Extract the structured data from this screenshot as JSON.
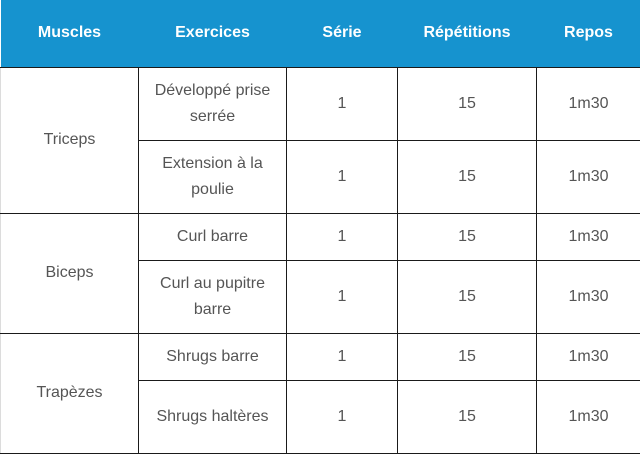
{
  "table": {
    "headers": {
      "muscle": "Muscles",
      "exercise": "Exercices",
      "series": "Série",
      "reps": "Répétitions",
      "rest": "Repos"
    },
    "groups": [
      {
        "muscle": "Triceps",
        "rows": [
          {
            "exercise": "Développé prise serrée",
            "series": "1",
            "reps": "15",
            "rest": "1m30"
          },
          {
            "exercise": "Extension à la poulie",
            "series": "1",
            "reps": "15",
            "rest": "1m30"
          }
        ]
      },
      {
        "muscle": "Biceps",
        "rows": [
          {
            "exercise": "Curl barre",
            "series": "1",
            "reps": "15",
            "rest": "1m30"
          },
          {
            "exercise": "Curl au pupitre barre",
            "series": "1",
            "reps": "15",
            "rest": "1m30"
          }
        ]
      },
      {
        "muscle": "Trapèzes",
        "rows": [
          {
            "exercise": "Shrugs barre",
            "series": "1",
            "reps": "15",
            "rest": "1m30"
          },
          {
            "exercise": "Shrugs haltères",
            "series": "1",
            "reps": "15",
            "rest": "1m30"
          }
        ]
      }
    ]
  },
  "colors": {
    "header_bg": "#1693cf",
    "header_text": "#ffffff",
    "body_text": "#555555",
    "grid_lines": "#1a1a1a"
  }
}
